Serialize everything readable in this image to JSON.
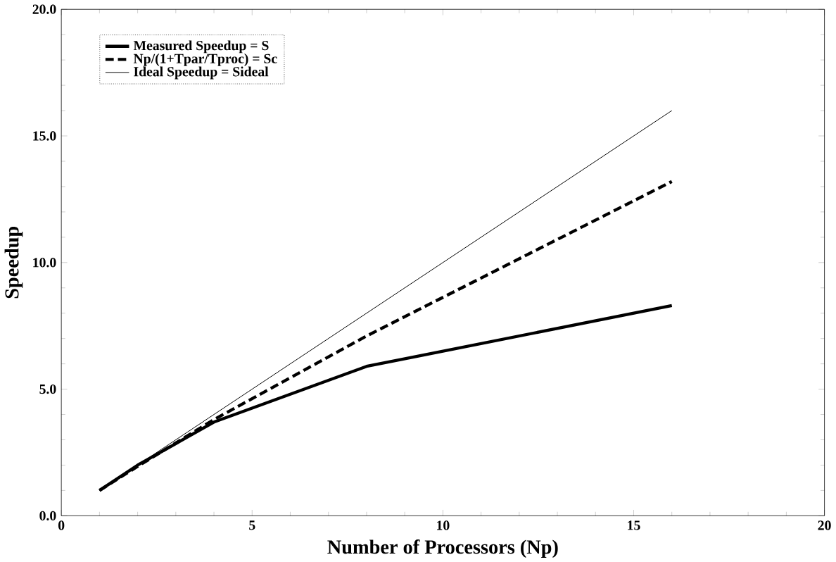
{
  "chart_data": {
    "type": "line",
    "xlabel": "Number of Processors (Np)",
    "ylabel": "Speedup",
    "x": [
      1,
      2,
      4,
      8,
      16
    ],
    "series": [
      {
        "name": "Measured Speedup = S",
        "color": "#000000",
        "values": [
          1.0,
          2.0,
          3.7,
          5.9,
          8.3
        ],
        "line_style": "solid"
      },
      {
        "name": "Np/(1+Tpar/Tproc) = Sc",
        "color": "#000000",
        "values": [
          1.0,
          1.95,
          3.8,
          7.1,
          13.2
        ],
        "line_style": "dashed"
      },
      {
        "name": "Ideal Speedup = Sideal",
        "color": "#000000",
        "values": [
          1,
          2,
          4,
          8,
          16
        ],
        "line_style": "solid"
      }
    ],
    "xlim": [
      0,
      20
    ],
    "ylim": [
      0,
      20
    ],
    "xticks": [
      0,
      5,
      10,
      15,
      20
    ],
    "yticks": [
      {
        "value": 0,
        "label": "0.0"
      },
      {
        "value": 5,
        "label": "5.0"
      },
      {
        "value": 10,
        "label": "10.0"
      },
      {
        "value": 15,
        "label": "15.0"
      },
      {
        "value": 20,
        "label": "20.0"
      }
    ],
    "legend": "top left",
    "grid": false,
    "marker": "none"
  }
}
